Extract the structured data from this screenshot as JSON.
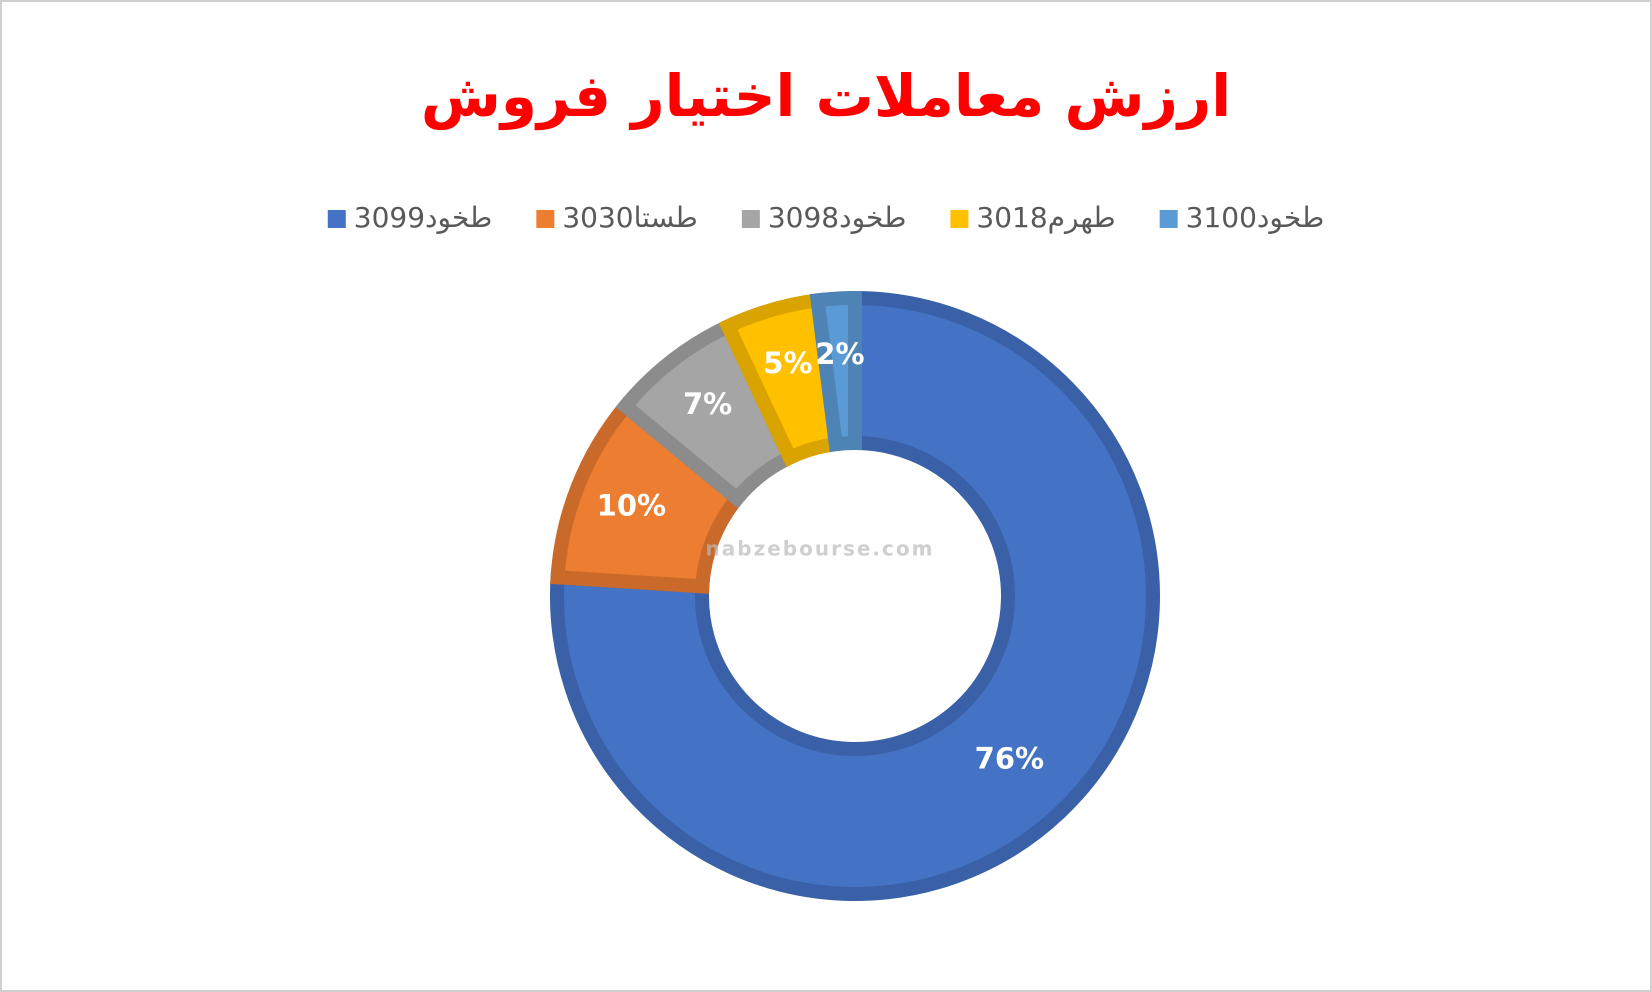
{
  "chart_data": {
    "type": "donut",
    "title": "ارزش معاملات اختیار فروش",
    "categories": [
      "طخود3099",
      "طستا3030",
      "طخود3098",
      "طهرم3018",
      "طخود3100"
    ],
    "values": [
      76,
      10,
      7,
      5,
      2
    ],
    "value_labels": [
      "76%",
      "10%",
      "7%",
      "5%",
      "2%"
    ],
    "colors": [
      "#4472c4",
      "#ed7d31",
      "#a5a5a5",
      "#ffc000",
      "#5b9bd5"
    ],
    "legend": "top",
    "watermark": "nabzebourse.com"
  }
}
